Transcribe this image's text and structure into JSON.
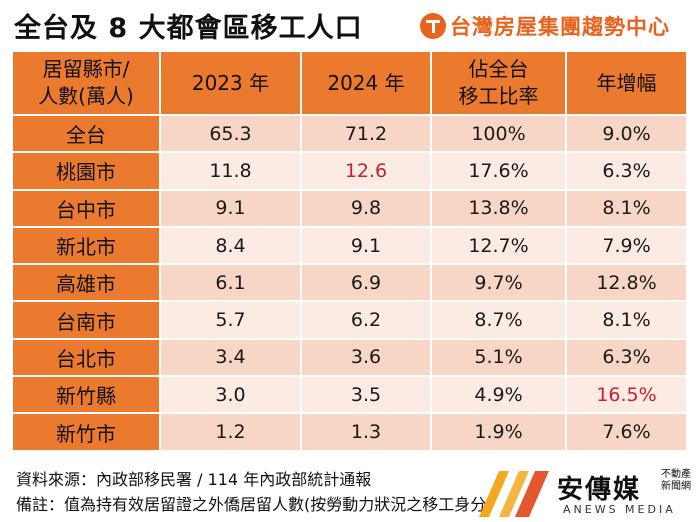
{
  "title": "全台及 8 大都會區移工人口",
  "brand": {
    "name": "台灣房屋集團趨勢中心",
    "logo_icon": "taiwan-house-logo-icon",
    "color": "#e8641e"
  },
  "table": {
    "columns": [
      {
        "line1": "居留縣市/",
        "line2": "人數(萬人)"
      },
      {
        "line1": "2023 年",
        "line2": ""
      },
      {
        "line1": "2024 年",
        "line2": ""
      },
      {
        "line1": "佔全台",
        "line2": "移工比率"
      },
      {
        "line1": "年增幅",
        "line2": ""
      }
    ],
    "rows": [
      {
        "city": "全台",
        "y2023": "65.3",
        "y2024": "71.2",
        "share": "100%",
        "growth": "9.0%"
      },
      {
        "city": "桃園市",
        "y2023": "11.8",
        "y2024": "12.6",
        "share": "17.6%",
        "growth": "6.3%"
      },
      {
        "city": "台中市",
        "y2023": "9.1",
        "y2024": "9.8",
        "share": "13.8%",
        "growth": "8.1%"
      },
      {
        "city": "新北市",
        "y2023": "8.4",
        "y2024": "9.1",
        "share": "12.7%",
        "growth": "7.9%"
      },
      {
        "city": "高雄市",
        "y2023": "6.1",
        "y2024": "6.9",
        "share": "9.7%",
        "growth": "12.8%"
      },
      {
        "city": "台南市",
        "y2023": "5.7",
        "y2024": "6.2",
        "share": "8.7%",
        "growth": "8.1%"
      },
      {
        "city": "台北市",
        "y2023": "3.4",
        "y2024": "3.6",
        "share": "5.1%",
        "growth": "6.3%"
      },
      {
        "city": "新竹縣",
        "y2023": "3.0",
        "y2024": "3.5",
        "share": "4.9%",
        "growth": "16.5%"
      },
      {
        "city": "新竹市",
        "y2023": "1.2",
        "y2024": "1.3",
        "share": "1.9%",
        "growth": "7.6%"
      }
    ],
    "highlight_color": "#c4242e",
    "header_color": "#ec7a2e"
  },
  "footer": {
    "source": "資料來源：內政部移民署 / 114 年內政部統計通報",
    "note": "備註：值為持有效居留證之外僑居留人數(按勞動力狀況之移工身分)"
  },
  "watermark": {
    "name": "安傳媒",
    "tag": "不動產新聞網",
    "sub": "ANEWS MEDIA",
    "logo_icon": "anews-media-logo-icon"
  }
}
